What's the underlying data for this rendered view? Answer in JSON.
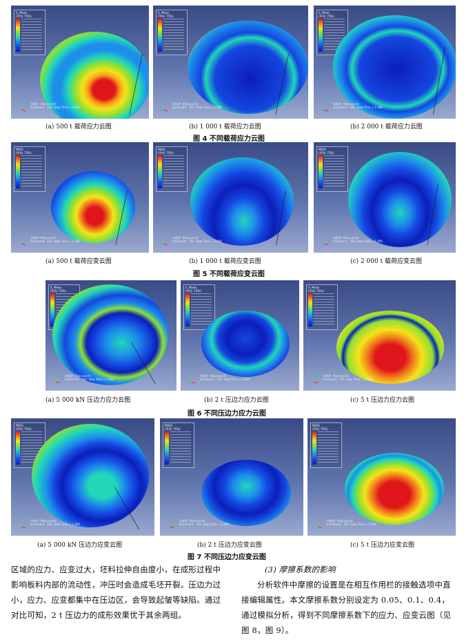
{
  "colors": {
    "panel_bg_top": "#3a4b86",
    "panel_bg_bottom": "#9aa9cf",
    "stress_high": "#e0151b",
    "stress_low": "#0b1fb8",
    "green": "#8fe033",
    "cyan": "#21d7b8"
  },
  "fig4": {
    "title": "图 4    不同载荷应力云图",
    "captions": [
      "(a)  500 t 载荷应力云图",
      "(b)  1 000 t 载荷应力云图",
      "(b)  2 000 t 载荷应力云图"
    ],
    "legend_title": "S, Mises\n(平均: 75%)"
  },
  "fig5": {
    "title": "图 5    不同载荷应变云图",
    "captions": [
      "(a)  500 t 载荷应变云图",
      "(b)  1 000 t 载荷应变云图",
      "(c)  2 000 t 载荷应变云图"
    ],
    "legend_title": "PEEQ\n(平均: 75%)"
  },
  "fig6": {
    "title": "图 6    不同压边力应力云图",
    "captions": [
      "(a)  5 000 kN 压边力应力云图",
      "(b)  2 t 压边力应力云图",
      "(c)  5 t 压边力应力云图"
    ],
    "legend_title": "S, Mises\n(平均: 75%)"
  },
  "fig7": {
    "title": "图 7    不同压边力应变云图",
    "captions": [
      "(a)  5 000 kN 压边力应变云图",
      "(b)  2 t 压边力应变云图",
      "(c)  5 t 压边力应变云图"
    ],
    "legend_title": "PEEQ\n(平均: 75%)"
  },
  "panel_status": "分析步: Step-punch\nIncrement   101: Step Time = 1.000",
  "left_text": "区域的应力、应变过大，坯料拉伸自由度小，在成形过程中影响板料内部的流动性，冲压时会造成毛坯开裂。压边力过小，应力、应变都集中在压边区，会导致起皱等缺陷。通过对比可知，2 t 压边力的成形效果优于其余两组。",
  "right_heading": "(3)  摩擦系数的影响",
  "right_text": "分析软件中摩擦的设置是在相互作用栏的接触选项中直接编辑属性。本文摩擦系数分别设定为 0.05、0.1、0.4，通过模拟分析，得到不同摩擦系数下的应力、应变云图（见图 8，图 9）。"
}
